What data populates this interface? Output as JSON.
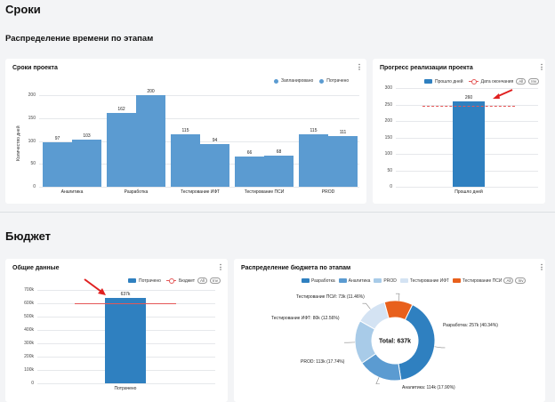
{
  "sections": {
    "timing_title": "Сроки",
    "timing_subtitle": "Распределение времени по этапам",
    "budget_title": "Бюджет"
  },
  "colors": {
    "blue_light": "#5b9bd1",
    "blue": "#2f80c0",
    "red": "#e45757",
    "orange": "#e8601c",
    "sky": "#a8cbe8",
    "pale": "#d4e3f3"
  },
  "cards": {
    "project_timeline": {
      "title": "Сроки проекта",
      "legend": [
        "Запланировано",
        "Потрачено"
      ],
      "menu": "⋮"
    },
    "progress": {
      "title": "Прогресс реализации проекта",
      "legend_bar": "Прошло дней",
      "legend_line": "Дата окончания",
      "pill_all": "All",
      "pill_inv": "Inv",
      "menu": "⋮"
    },
    "overall": {
      "title": "Общие данные",
      "legend_bar": "Потрачено",
      "legend_line": "Бюджет",
      "pill_all": "All",
      "pill_inv": "Inv",
      "menu": "⋮"
    },
    "budget_split": {
      "title": "Распределение бюджета по этапам",
      "legend": [
        "Разработка",
        "Аналитика",
        "PROD",
        "Тестирование ИФТ",
        "Тестирование ПСИ"
      ],
      "pill_all": "All",
      "pill_inv": "Inv",
      "menu": "⋮"
    }
  },
  "chart_data": [
    {
      "type": "bar",
      "ylabel": "Количество дней",
      "ylim": [
        0,
        200
      ],
      "yticks": [
        "0",
        "50",
        "100",
        "150",
        "200"
      ],
      "categories": [
        "Аналитика",
        "Разработка",
        "Тестирование ИФТ",
        "Тестирование ПСИ",
        "PROD"
      ],
      "series": [
        {
          "name": "Запланировано",
          "values": [
            97,
            162,
            115,
            66,
            115
          ]
        },
        {
          "name": "Потрачено",
          "values": [
            103,
            200,
            94,
            68,
            111
          ]
        }
      ]
    },
    {
      "type": "bar",
      "categories": [
        "Прошло дней"
      ],
      "values": [
        260
      ],
      "value_label": "260",
      "ylim": [
        0,
        300
      ],
      "yticks": [
        "0",
        "50",
        "100",
        "150",
        "200",
        "250",
        "300"
      ],
      "reference_line": {
        "name": "Дата окончания",
        "value": 245
      }
    },
    {
      "type": "bar",
      "categories": [
        "Потрачено"
      ],
      "values": [
        637
      ],
      "value_label": "637k",
      "ylim": [
        0,
        700
      ],
      "yticks": [
        "0",
        "100k",
        "200k",
        "300k",
        "400k",
        "500k",
        "600k",
        "700k"
      ],
      "reference_line": {
        "name": "Бюджет",
        "value": 600
      }
    },
    {
      "type": "pie",
      "center_label": "Total: 637k",
      "slices": [
        {
          "name": "Разработка",
          "value": 257,
          "label": "Разработка: 257k (40.34%)"
        },
        {
          "name": "Аналитика",
          "value": 114,
          "label": "Аналитика: 114k (17.90%)"
        },
        {
          "name": "PROD",
          "value": 113,
          "label": "PROD: 113k (17.74%)"
        },
        {
          "name": "Тестирование ИФТ",
          "value": 80,
          "label": "Тестирование ИФТ: 80k (12.56%)"
        },
        {
          "name": "Тестирование ПСИ",
          "value": 73,
          "label": "Тестирование ПСИ: 73k (11.46%)"
        }
      ]
    }
  ]
}
